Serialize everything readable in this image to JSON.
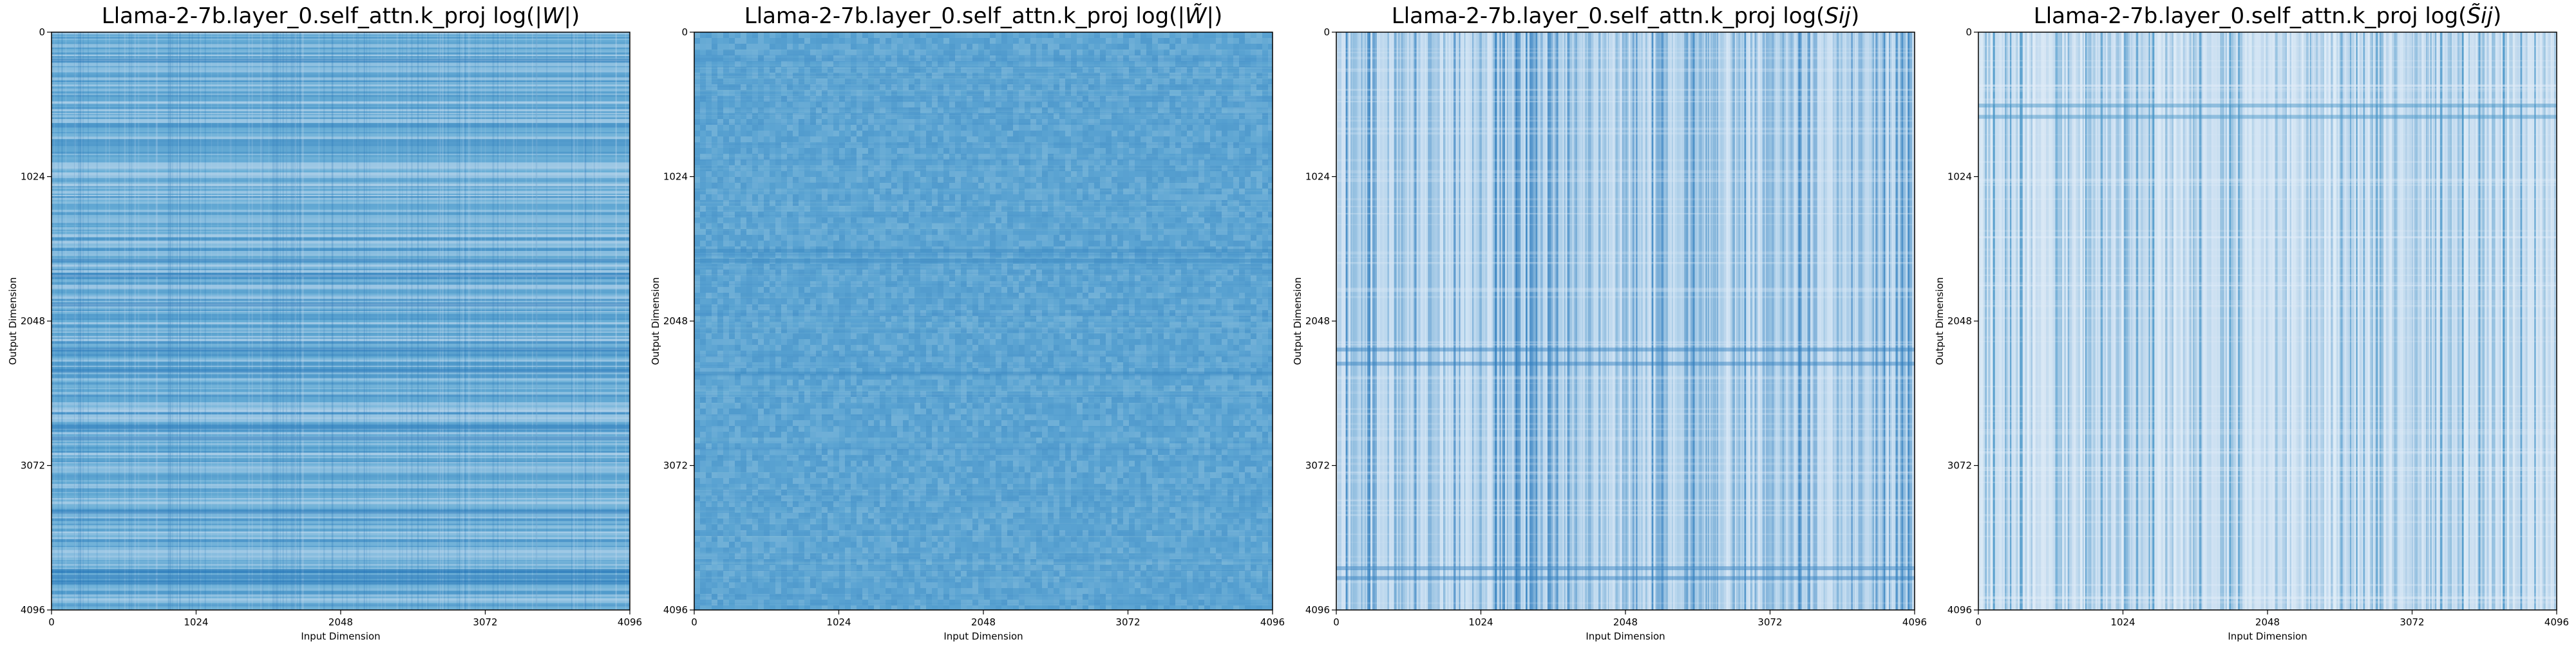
{
  "chart_data": [
    {
      "type": "heatmap",
      "title": "Llama-2-7b.layer_0.self_attn.k_proj log(|W|)",
      "title_prefix": "Llama-2-7b.layer_0.self_attn.k_proj log(",
      "title_math": "|W|",
      "title_suffix": ")",
      "xlabel": "Input Dimension",
      "ylabel": "Output Dimension",
      "xticks": [
        "0",
        "1024",
        "2048",
        "3072",
        "4096"
      ],
      "yticks": [
        "0",
        "1024",
        "2048",
        "3072",
        "4096"
      ],
      "xlim": [
        0,
        4096
      ],
      "ylim": [
        4096,
        0
      ],
      "colormap": "Blues",
      "texture": "horizontal",
      "base_color": "#6aaed6",
      "light_color": "#c6dbef",
      "dark_color": "#2171b5",
      "dark_bands_y": [
        200,
        1620,
        1720,
        1930,
        2250,
        2400,
        2800,
        2880,
        3400,
        3820,
        3860,
        3900
      ]
    },
    {
      "type": "heatmap",
      "title": "Llama-2-7b.layer_0.self_attn.k_proj log(|W̃|)",
      "title_prefix": "Llama-2-7b.layer_0.self_attn.k_proj log(",
      "title_math": "|W̃|",
      "title_suffix": ")",
      "xlabel": "Input Dimension",
      "ylabel": "Output Dimension",
      "xticks": [
        "0",
        "1024",
        "2048",
        "3072",
        "4096"
      ],
      "yticks": [
        "0",
        "1024",
        "2048",
        "3072",
        "4096"
      ],
      "xlim": [
        0,
        4096
      ],
      "ylim": [
        4096,
        0
      ],
      "colormap": "Blues",
      "texture": "noise",
      "base_color": "#5ca4d2",
      "light_color": "#9ecae1",
      "dark_color": "#3a87c2",
      "dark_bands_y": [
        1550,
        1620,
        2420
      ]
    },
    {
      "type": "heatmap",
      "title": "Llama-2-7b.layer_0.self_attn.k_proj log(Sij)",
      "title_prefix": "Llama-2-7b.layer_0.self_attn.k_proj log(",
      "title_math": "Sij",
      "title_suffix": ")",
      "xlabel": "Input Dimension",
      "ylabel": "Output Dimension",
      "xticks": [
        "0",
        "1024",
        "2048",
        "3072",
        "4096"
      ],
      "yticks": [
        "0",
        "1024",
        "2048",
        "3072",
        "4096"
      ],
      "xlim": [
        0,
        4096
      ],
      "ylim": [
        4096,
        0
      ],
      "colormap": "Blues",
      "texture": "vertical",
      "base_color": "#a6cbe6",
      "light_color": "#deebf7",
      "dark_color": "#2f7dbd",
      "dark_bands_y": [
        2250,
        2350,
        3800,
        3870
      ]
    },
    {
      "type": "heatmap",
      "title": "Llama-2-7b.layer_0.self_attn.k_proj log(S̃ij)",
      "title_prefix": "Llama-2-7b.layer_0.self_attn.k_proj log(",
      "title_math": "S̃ij",
      "title_suffix": ")",
      "xlabel": "Input Dimension",
      "ylabel": "Output Dimension",
      "xticks": [
        "0",
        "1024",
        "2048",
        "3072",
        "4096"
      ],
      "yticks": [
        "0",
        "1024",
        "2048",
        "3072",
        "4096"
      ],
      "xlim": [
        0,
        4096
      ],
      "ylim": [
        4096,
        0
      ],
      "colormap": "Blues",
      "texture": "vertical",
      "base_color": "#c3daee",
      "light_color": "#e3eef8",
      "dark_color": "#4292c6",
      "dark_bands_y": [
        520,
        600
      ]
    }
  ]
}
